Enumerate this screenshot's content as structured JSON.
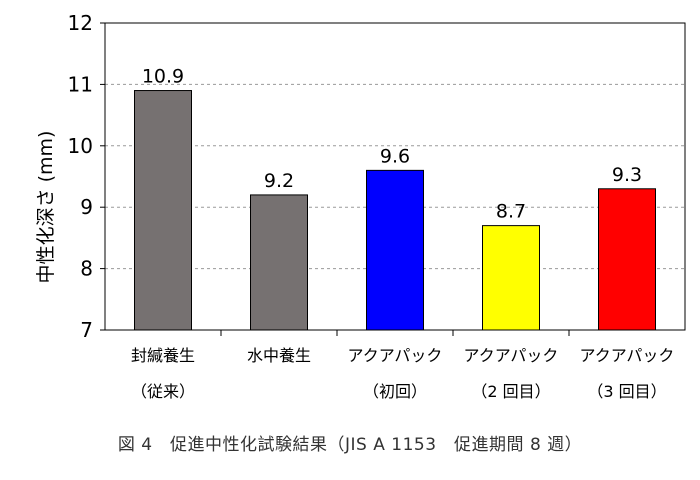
{
  "chart_data": {
    "type": "bar",
    "categories": [
      [
        "封緘養生",
        "（従来）"
      ],
      [
        "水中養生",
        ""
      ],
      [
        "アクアパック",
        "（初回）"
      ],
      [
        "アクアパック",
        "（2 回目）"
      ],
      [
        "アクアパック",
        "（3 回目）"
      ]
    ],
    "values": [
      10.9,
      9.2,
      9.6,
      8.7,
      9.3
    ],
    "value_labels": [
      "10.9",
      "9.2",
      "9.6",
      "8.7",
      "9.3"
    ],
    "colors": [
      "#767171",
      "#767171",
      "#0000FF",
      "#FFFF00",
      "#FF0000"
    ],
    "ylabel": "中性化深さ (mm)",
    "xlabel": "",
    "ylim": [
      7,
      12
    ],
    "yticks": [
      7,
      8,
      9,
      10,
      11,
      12
    ],
    "grid": true
  },
  "caption": "図 4　促進中性化試験結果（JIS A 1153　促進期間 8 週）"
}
